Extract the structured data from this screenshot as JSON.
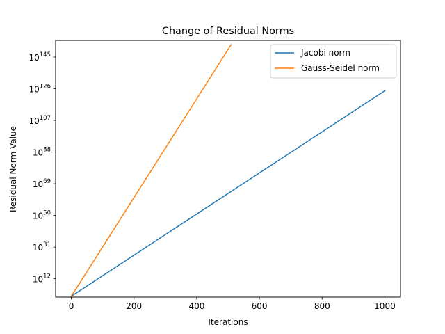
{
  "chart_data": {
    "type": "line",
    "title": "Change of Residual Norms",
    "xlabel": "Iterations",
    "ylabel": "Residual Norm Value",
    "yscale": "log",
    "xlim": [
      -50,
      1050
    ],
    "ylim_exponent": [
      1,
      155
    ],
    "x_ticks": [
      0,
      200,
      400,
      600,
      800,
      1000
    ],
    "y_tick_exponents": [
      12,
      31,
      50,
      69,
      88,
      107,
      126,
      145
    ],
    "y_tick_base": "10",
    "legend_position": "top-right",
    "grid": false,
    "series": [
      {
        "name": "Jacobi norm",
        "color": "#1f77b4",
        "x": [
          0,
          1000
        ],
        "y_exponent": [
          1.5,
          124.8
        ]
      },
      {
        "name": "Gauss-Seidel norm",
        "color": "#ff7f0e",
        "x": [
          0,
          510
        ],
        "y_exponent": [
          1.5,
          152.5
        ]
      }
    ]
  }
}
